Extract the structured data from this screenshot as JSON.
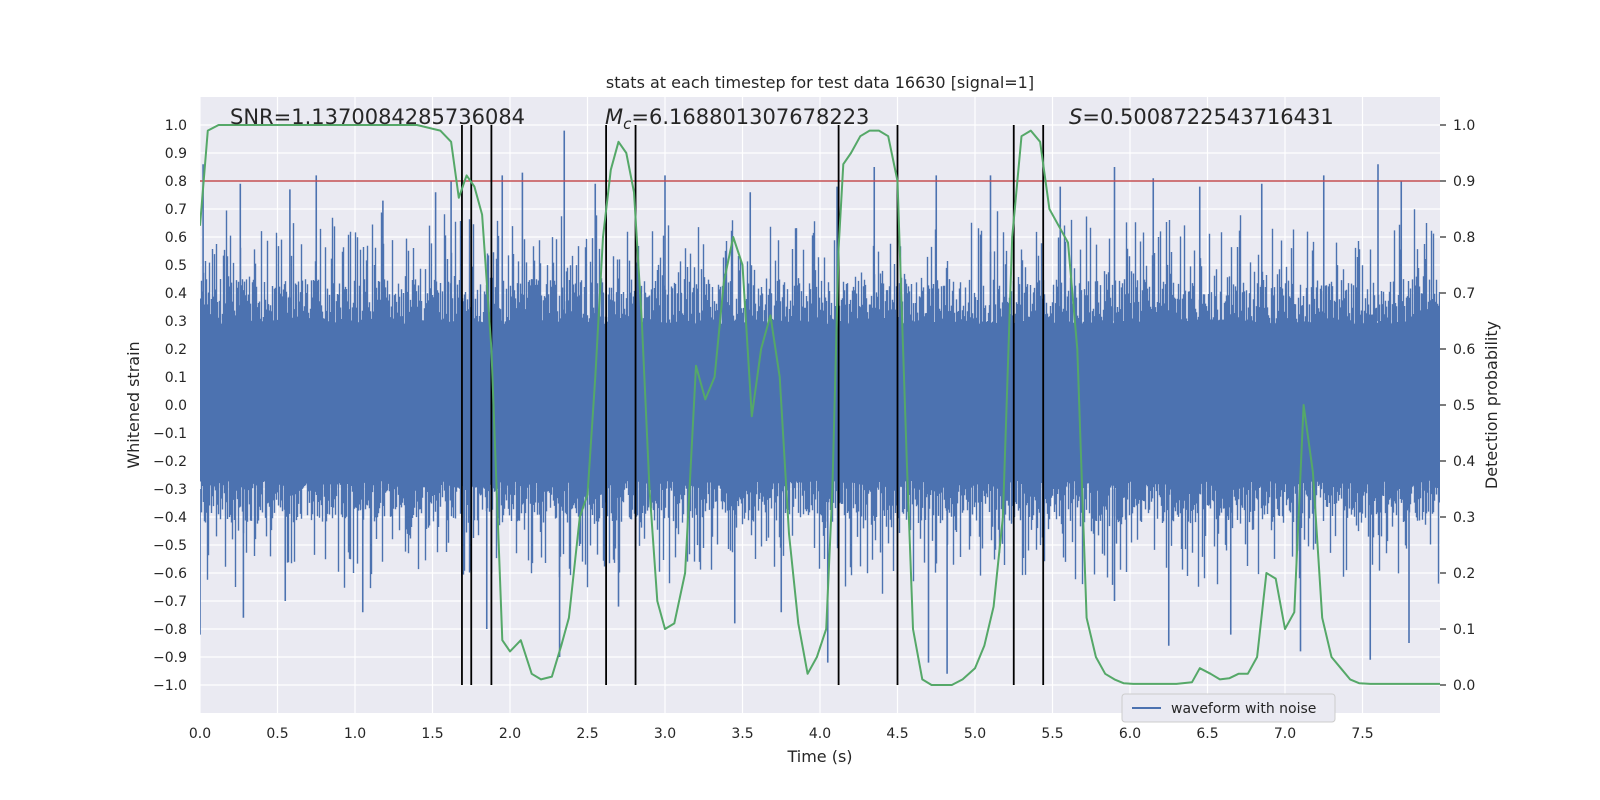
{
  "chart_data": {
    "type": "line",
    "title": "stats at each timestep for test data 16630 [signal=1]",
    "xlabel": "Time (s)",
    "ylabel": "Whitened strain",
    "y2label": "Detection probability",
    "xlim": [
      0.0,
      8.0
    ],
    "ylim": [
      -1.1,
      1.1
    ],
    "y2lim": [
      -0.05,
      1.05
    ],
    "xticks": [
      0.0,
      0.5,
      1.0,
      1.5,
      2.0,
      2.5,
      3.0,
      3.5,
      4.0,
      4.5,
      5.0,
      5.5,
      6.0,
      6.5,
      7.0,
      7.5
    ],
    "yticks": [
      -1.0,
      -0.9,
      -0.8,
      -0.7,
      -0.6,
      -0.5,
      -0.4,
      -0.3,
      -0.2,
      -0.1,
      0.0,
      0.1,
      0.2,
      0.3,
      0.4,
      0.5,
      0.6,
      0.7,
      0.8,
      0.9,
      1.0
    ],
    "y2ticks": [
      0.0,
      0.1,
      0.2,
      0.3,
      0.4,
      0.5,
      0.6,
      0.7,
      0.8,
      0.9,
      1.0
    ],
    "grid": true,
    "legend": {
      "position": "lower-right",
      "entries": [
        "waveform with noise"
      ]
    },
    "colors": {
      "waveform": "#4c72b0",
      "probability": "#55a868",
      "threshold": "#c44e52",
      "markers": "#000000",
      "background": "#eaeaf2",
      "grid": "#ffffff"
    },
    "annotations": {
      "snr": "SNR=1.1370084285736084",
      "mc_symbol": "M",
      "mc_sub": "c",
      "mc_value": "=6.168801307678223",
      "s_symbol": "S",
      "s_value": "=0.5008722543716431"
    },
    "threshold_y2": 0.9,
    "waveform": {
      "name": "waveform with noise",
      "description_range": [
        -1.0,
        1.0
      ],
      "typical_envelope": [
        -0.42,
        0.45
      ],
      "spikes_up": [
        [
          0.02,
          0.86
        ],
        [
          0.26,
          0.79
        ],
        [
          0.58,
          0.77
        ],
        [
          0.75,
          0.82
        ],
        [
          1.18,
          0.73
        ],
        [
          1.52,
          0.76
        ],
        [
          1.62,
          0.8
        ],
        [
          1.95,
          0.82
        ],
        [
          2.08,
          0.83
        ],
        [
          2.35,
          0.98
        ],
        [
          2.55,
          0.79
        ],
        [
          3.0,
          0.82
        ],
        [
          3.55,
          0.76
        ],
        [
          4.11,
          0.78
        ],
        [
          4.35,
          0.85
        ],
        [
          4.75,
          0.82
        ],
        [
          5.1,
          0.82
        ],
        [
          5.55,
          0.78
        ],
        [
          5.9,
          0.85
        ],
        [
          6.15,
          0.81
        ],
        [
          6.45,
          0.78
        ],
        [
          6.85,
          0.79
        ],
        [
          7.25,
          0.82
        ],
        [
          7.6,
          0.86
        ],
        [
          7.75,
          0.8
        ]
      ],
      "spikes_down": [
        [
          0.0,
          -0.82
        ],
        [
          0.28,
          -0.76
        ],
        [
          0.55,
          -0.7
        ],
        [
          1.05,
          -0.74
        ],
        [
          1.85,
          -0.8
        ],
        [
          2.32,
          -0.9
        ],
        [
          2.7,
          -0.72
        ],
        [
          3.45,
          -0.78
        ],
        [
          3.75,
          -0.74
        ],
        [
          4.05,
          -0.92
        ],
        [
          4.7,
          -0.92
        ],
        [
          4.82,
          -0.96
        ],
        [
          5.25,
          -0.8
        ],
        [
          5.9,
          -0.7
        ],
        [
          6.25,
          -0.86
        ],
        [
          6.65,
          -0.82
        ],
        [
          7.1,
          -0.88
        ],
        [
          7.55,
          -0.91
        ],
        [
          7.8,
          -0.85
        ]
      ]
    },
    "probability": {
      "name": "detection probability",
      "x": [
        0.0,
        0.05,
        0.12,
        0.2,
        0.4,
        0.6,
        0.8,
        1.0,
        1.2,
        1.4,
        1.55,
        1.62,
        1.67,
        1.72,
        1.77,
        1.82,
        1.88,
        1.95,
        2.0,
        2.07,
        2.14,
        2.2,
        2.27,
        2.33,
        2.38,
        2.45,
        2.5,
        2.55,
        2.6,
        2.65,
        2.7,
        2.75,
        2.8,
        2.85,
        2.9,
        2.95,
        3.0,
        3.06,
        3.13,
        3.2,
        3.26,
        3.32,
        3.38,
        3.44,
        3.5,
        3.56,
        3.62,
        3.68,
        3.74,
        3.8,
        3.86,
        3.92,
        3.98,
        4.04,
        4.08,
        4.12,
        4.15,
        4.2,
        4.26,
        4.32,
        4.38,
        4.44,
        4.5,
        4.56,
        4.6,
        4.66,
        4.72,
        4.78,
        4.85,
        4.92,
        5.0,
        5.06,
        5.12,
        5.18,
        5.24,
        5.3,
        5.36,
        5.42,
        5.48,
        5.54,
        5.6,
        5.66,
        5.72,
        5.78,
        5.84,
        5.9,
        5.96,
        6.02,
        6.1,
        6.2,
        6.3,
        6.4,
        6.45,
        6.52,
        6.58,
        6.64,
        6.7,
        6.76,
        6.82,
        6.88,
        6.94,
        7.0,
        7.06,
        7.12,
        7.18,
        7.24,
        7.3,
        7.36,
        7.42,
        7.48,
        7.55,
        7.65,
        7.8,
        8.0
      ],
      "y": [
        0.82,
        0.99,
        1.0,
        1.0,
        1.0,
        1.0,
        1.0,
        1.0,
        1.0,
        1.0,
        0.99,
        0.97,
        0.87,
        0.91,
        0.89,
        0.84,
        0.6,
        0.08,
        0.06,
        0.08,
        0.02,
        0.01,
        0.015,
        0.07,
        0.12,
        0.3,
        0.34,
        0.55,
        0.8,
        0.92,
        0.97,
        0.95,
        0.88,
        0.65,
        0.35,
        0.15,
        0.1,
        0.11,
        0.2,
        0.57,
        0.51,
        0.55,
        0.72,
        0.8,
        0.75,
        0.48,
        0.6,
        0.66,
        0.55,
        0.27,
        0.11,
        0.02,
        0.05,
        0.1,
        0.35,
        0.78,
        0.93,
        0.95,
        0.98,
        0.99,
        0.99,
        0.98,
        0.9,
        0.4,
        0.1,
        0.01,
        0.0,
        0.0,
        0.0,
        0.01,
        0.03,
        0.07,
        0.14,
        0.3,
        0.8,
        0.98,
        0.99,
        0.97,
        0.85,
        0.82,
        0.79,
        0.6,
        0.12,
        0.05,
        0.02,
        0.01,
        0.003,
        0.002,
        0.002,
        0.002,
        0.002,
        0.005,
        0.03,
        0.02,
        0.01,
        0.012,
        0.02,
        0.02,
        0.05,
        0.2,
        0.19,
        0.1,
        0.13,
        0.5,
        0.38,
        0.12,
        0.05,
        0.03,
        0.01,
        0.003,
        0.002,
        0.002,
        0.002,
        0.002
      ]
    },
    "event_markers_x": [
      1.69,
      1.75,
      1.88,
      2.62,
      2.81,
      4.12,
      4.5,
      5.25,
      5.44
    ]
  }
}
